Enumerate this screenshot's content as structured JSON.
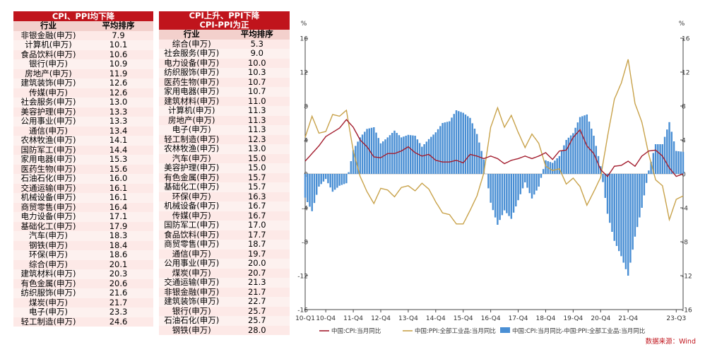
{
  "table_left": {
    "title": "CPI、PPI均下降",
    "col_industry": "行业",
    "col_rank": "平均排序",
    "rows": [
      [
        "非银金融(申万)",
        "7.9"
      ],
      [
        "计算机(申万)",
        "10.1"
      ],
      [
        "食品饮料(申万)",
        "10.6"
      ],
      [
        "银行(申万)",
        "10.9"
      ],
      [
        "房地产(申万)",
        "11.9"
      ],
      [
        "建筑装饰(申万)",
        "12.6"
      ],
      [
        "传媒(申万)",
        "12.6"
      ],
      [
        "社会服务(申万)",
        "13.0"
      ],
      [
        "美容护理(申万)",
        "13.3"
      ],
      [
        "公用事业(申万)",
        "13.3"
      ],
      [
        "通信(申万)",
        "13.4"
      ],
      [
        "农林牧渔(申万)",
        "14.1"
      ],
      [
        "国防军工(申万)",
        "14.4"
      ],
      [
        "家用电器(申万)",
        "15.3"
      ],
      [
        "医药生物(申万)",
        "15.6"
      ],
      [
        "石油石化(申万)",
        "16.0"
      ],
      [
        "交通运输(申万)",
        "16.1"
      ],
      [
        "机械设备(申万)",
        "16.1"
      ],
      [
        "商贸零售(申万)",
        "16.4"
      ],
      [
        "电力设备(申万)",
        "17.1"
      ],
      [
        "基础化工(申万)",
        "17.9"
      ],
      [
        "汽车(申万)",
        "18.3"
      ],
      [
        "钢铁(申万)",
        "18.4"
      ],
      [
        "环保(申万)",
        "18.6"
      ],
      [
        "综合(申万)",
        "20.1"
      ],
      [
        "建筑材料(申万)",
        "20.3"
      ],
      [
        "有色金属(申万)",
        "20.6"
      ],
      [
        "纺织服饰(申万)",
        "21.6"
      ],
      [
        "煤炭(申万)",
        "21.7"
      ],
      [
        "电子(申万)",
        "23.3"
      ],
      [
        "轻工制造(申万)",
        "24.6"
      ]
    ]
  },
  "table_right": {
    "title": "CPI上升、PPI下降",
    "subtitle": "CPI-PPI为正",
    "col_industry": "行业",
    "col_rank": "平均排序",
    "rows": [
      [
        "综合(申万)",
        "5.3"
      ],
      [
        "社会服务(申万)",
        "9.0"
      ],
      [
        "电力设备(申万)",
        "10.0"
      ],
      [
        "纺织服饰(申万)",
        "10.3"
      ],
      [
        "医药生物(申万)",
        "10.7"
      ],
      [
        "家用电器(申万)",
        "10.7"
      ],
      [
        "建筑材料(申万)",
        "11.0"
      ],
      [
        "计算机(申万)",
        "11.3"
      ],
      [
        "房地产(申万)",
        "11.3"
      ],
      [
        "电子(申万)",
        "11.3"
      ],
      [
        "轻工制造(申万)",
        "12.3"
      ],
      [
        "农林牧渔(申万)",
        "13.0"
      ],
      [
        "汽车(申万)",
        "15.0"
      ],
      [
        "美容护理(申万)",
        "15.0"
      ],
      [
        "有色金属(申万)",
        "15.7"
      ],
      [
        "基础化工(申万)",
        "15.7"
      ],
      [
        "环保(申万)",
        "16.3"
      ],
      [
        "机械设备(申万)",
        "16.7"
      ],
      [
        "传媒(申万)",
        "16.7"
      ],
      [
        "国防军工(申万)",
        "17.0"
      ],
      [
        "食品饮料(申万)",
        "17.7"
      ],
      [
        "商贸零售(申万)",
        "18.7"
      ],
      [
        "通信(申万)",
        "19.7"
      ],
      [
        "公用事业(申万)",
        "20.0"
      ],
      [
        "煤炭(申万)",
        "20.7"
      ],
      [
        "交通运输(申万)",
        "21.3"
      ],
      [
        "非银金融(申万)",
        "21.7"
      ],
      [
        "建筑装饰(申万)",
        "22.7"
      ],
      [
        "银行(申万)",
        "25.7"
      ],
      [
        "石油石化(申万)",
        "25.7"
      ],
      [
        "钢铁(申万)",
        "28.0"
      ]
    ]
  },
  "chart_data": {
    "type": "line",
    "y_unit_left": "%",
    "y_unit_right": "%",
    "ylim": [
      -16,
      16
    ],
    "yticks": [
      16,
      12,
      8,
      4,
      0,
      -4,
      -8,
      -12,
      -16
    ],
    "x_tick_labels": [
      "10-Q1",
      "10-Q4",
      "11-Q4",
      "12-Q4",
      "13-Q4",
      "14-Q4",
      "15-Q4",
      "16-Q4",
      "17-Q4",
      "18-Q4",
      "19-Q4",
      "20-Q4",
      "21-Q4",
      "23-Q3"
    ],
    "x_start": 2010.0,
    "x_end": 2023.75,
    "x_tick_positions": [
      2010.0,
      2010.75,
      2011.75,
      2012.75,
      2013.75,
      2014.75,
      2015.75,
      2016.75,
      2017.75,
      2018.75,
      2019.75,
      2020.75,
      2021.75,
      2023.5
    ],
    "series": [
      {
        "name": "中国:CPI:当月同比",
        "color": "#a31d2e",
        "points": [
          [
            2010.0,
            1.5
          ],
          [
            2010.25,
            2.4
          ],
          [
            2010.5,
            3.3
          ],
          [
            2010.75,
            4.4
          ],
          [
            2011.0,
            4.9
          ],
          [
            2011.25,
            5.4
          ],
          [
            2011.5,
            6.4
          ],
          [
            2011.75,
            5.5
          ],
          [
            2012.0,
            4.0
          ],
          [
            2012.25,
            3.2
          ],
          [
            2012.5,
            2.0
          ],
          [
            2012.75,
            1.9
          ],
          [
            2013.0,
            2.4
          ],
          [
            2013.25,
            2.4
          ],
          [
            2013.5,
            2.7
          ],
          [
            2013.75,
            3.2
          ],
          [
            2014.0,
            2.5
          ],
          [
            2014.25,
            2.1
          ],
          [
            2014.5,
            2.3
          ],
          [
            2014.75,
            1.6
          ],
          [
            2015.0,
            1.4
          ],
          [
            2015.25,
            1.4
          ],
          [
            2015.5,
            1.6
          ],
          [
            2015.75,
            1.3
          ],
          [
            2016.0,
            2.3
          ],
          [
            2016.25,
            2.1
          ],
          [
            2016.5,
            1.8
          ],
          [
            2016.75,
            2.1
          ],
          [
            2017.0,
            1.8
          ],
          [
            2017.25,
            1.2
          ],
          [
            2017.5,
            1.6
          ],
          [
            2017.75,
            1.8
          ],
          [
            2018.0,
            2.1
          ],
          [
            2018.25,
            1.8
          ],
          [
            2018.5,
            2.1
          ],
          [
            2018.75,
            2.5
          ],
          [
            2019.0,
            1.7
          ],
          [
            2019.25,
            2.7
          ],
          [
            2019.5,
            2.8
          ],
          [
            2019.75,
            4.3
          ],
          [
            2020.0,
            5.2
          ],
          [
            2020.25,
            3.3
          ],
          [
            2020.5,
            2.4
          ],
          [
            2020.75,
            0.5
          ],
          [
            2021.0,
            -0.3
          ],
          [
            2021.25,
            0.9
          ],
          [
            2021.5,
            1.0
          ],
          [
            2021.75,
            1.5
          ],
          [
            2022.0,
            0.9
          ],
          [
            2022.25,
            2.1
          ],
          [
            2022.5,
            2.7
          ],
          [
            2022.75,
            2.8
          ],
          [
            2023.0,
            2.1
          ],
          [
            2023.25,
            0.7
          ],
          [
            2023.5,
            -0.3
          ],
          [
            2023.75,
            0.0
          ]
        ]
      },
      {
        "name": "中国:PPI:全部工业品:当月同比",
        "color": "#c8a24a",
        "points": [
          [
            2010.0,
            4.3
          ],
          [
            2010.25,
            6.8
          ],
          [
            2010.5,
            4.8
          ],
          [
            2010.75,
            5.0
          ],
          [
            2011.0,
            7.0
          ],
          [
            2011.25,
            6.8
          ],
          [
            2011.5,
            7.5
          ],
          [
            2011.75,
            2.7
          ],
          [
            2012.0,
            -0.3
          ],
          [
            2012.25,
            -2.1
          ],
          [
            2012.5,
            -3.5
          ],
          [
            2012.75,
            -1.7
          ],
          [
            2013.0,
            -1.9
          ],
          [
            2013.25,
            -2.7
          ],
          [
            2013.5,
            -1.6
          ],
          [
            2013.75,
            -1.4
          ],
          [
            2014.0,
            -2.0
          ],
          [
            2014.25,
            -1.1
          ],
          [
            2014.5,
            -1.8
          ],
          [
            2014.75,
            -3.3
          ],
          [
            2015.0,
            -4.6
          ],
          [
            2015.25,
            -4.8
          ],
          [
            2015.5,
            -5.9
          ],
          [
            2015.75,
            -5.9
          ],
          [
            2016.0,
            -4.3
          ],
          [
            2016.25,
            -2.6
          ],
          [
            2016.5,
            0.1
          ],
          [
            2016.75,
            5.5
          ],
          [
            2017.0,
            7.8
          ],
          [
            2017.25,
            5.5
          ],
          [
            2017.5,
            6.9
          ],
          [
            2017.75,
            4.9
          ],
          [
            2018.0,
            3.1
          ],
          [
            2018.25,
            4.7
          ],
          [
            2018.5,
            3.6
          ],
          [
            2018.75,
            0.9
          ],
          [
            2019.0,
            0.4
          ],
          [
            2019.25,
            0.6
          ],
          [
            2019.5,
            -1.2
          ],
          [
            2019.75,
            -0.5
          ],
          [
            2020.0,
            -1.5
          ],
          [
            2020.25,
            -3.7
          ],
          [
            2020.5,
            -2.1
          ],
          [
            2020.75,
            -0.4
          ],
          [
            2021.0,
            4.4
          ],
          [
            2021.25,
            8.8
          ],
          [
            2021.5,
            10.7
          ],
          [
            2021.75,
            13.5
          ],
          [
            2022.0,
            8.3
          ],
          [
            2022.25,
            6.1
          ],
          [
            2022.5,
            2.3
          ],
          [
            2022.75,
            -0.7
          ],
          [
            2023.0,
            -1.4
          ],
          [
            2023.25,
            -5.4
          ],
          [
            2023.5,
            -3.0
          ],
          [
            2023.75,
            -2.6
          ]
        ]
      },
      {
        "name": "中国:CPI:当月同比-中国:PPI:全部工业品:当月同比",
        "color": "#4a8fd4",
        "type": "bar"
      }
    ],
    "source": "数据来源：Wind"
  }
}
